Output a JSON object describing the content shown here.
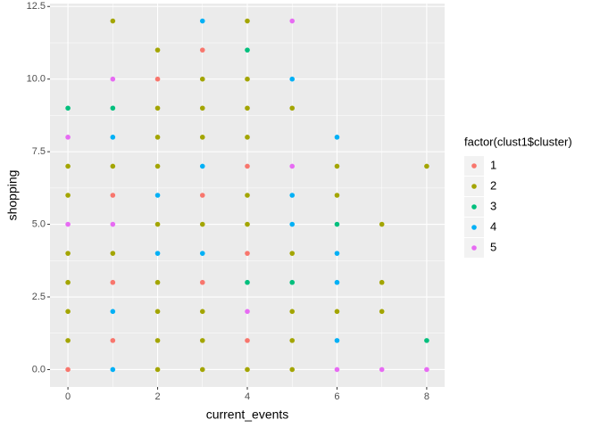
{
  "chart_data": {
    "type": "scatter",
    "x_label": "current_events",
    "y_label": "shopping",
    "legend_title": "factor(clust1$cluster)",
    "legend_position": "right",
    "grid": true,
    "xlim": [
      -0.4,
      8.4
    ],
    "ylim": [
      -0.6,
      12.6
    ],
    "xticks": [
      0,
      2,
      4,
      6,
      8
    ],
    "yticks": [
      {
        "value": 0,
        "label": "0.0"
      },
      {
        "value": 2.5,
        "label": "2.5"
      },
      {
        "value": 5,
        "label": "5.0"
      },
      {
        "value": 7.5,
        "label": "7.5"
      },
      {
        "value": 10,
        "label": "10.0"
      },
      {
        "value": 12.5,
        "label": "12.5"
      }
    ],
    "series": [
      {
        "name": "1",
        "color": "#F8766D",
        "x": [
          0,
          1,
          1,
          1,
          2,
          3,
          3,
          3,
          4,
          4,
          4
        ],
        "values": [
          0,
          1,
          3,
          6,
          10,
          3,
          6,
          11,
          1,
          4,
          7
        ]
      },
      {
        "name": "2",
        "color": "#A3A500",
        "x": [
          0,
          0,
          0,
          0,
          0,
          0,
          1,
          1,
          1,
          2,
          2,
          2,
          2,
          2,
          2,
          2,
          2,
          2,
          3,
          3,
          3,
          3,
          3,
          3,
          3,
          4,
          4,
          4,
          4,
          4,
          4,
          4,
          5,
          5,
          5,
          5,
          5,
          6,
          6,
          6,
          7,
          7,
          7,
          8
        ],
        "values": [
          1,
          2,
          3,
          4,
          6,
          7,
          4,
          7,
          12,
          0,
          1,
          2,
          3,
          5,
          7,
          8,
          9,
          11,
          0,
          1,
          2,
          5,
          8,
          9,
          10,
          0,
          5,
          6,
          8,
          9,
          10,
          12,
          0,
          1,
          2,
          4,
          9,
          2,
          6,
          7,
          2,
          3,
          5,
          7
        ]
      },
      {
        "name": "3",
        "color": "#00BF7D",
        "x": [
          0,
          1,
          4,
          4,
          5,
          6,
          8
        ],
        "values": [
          9,
          9,
          3,
          11,
          3,
          5,
          1
        ]
      },
      {
        "name": "4",
        "color": "#00B0F6",
        "x": [
          1,
          1,
          1,
          2,
          2,
          3,
          3,
          3,
          5,
          5,
          5,
          6,
          6,
          6,
          6
        ],
        "values": [
          0,
          2,
          8,
          4,
          6,
          4,
          7,
          12,
          5,
          6,
          10,
          1,
          3,
          4,
          8
        ]
      },
      {
        "name": "5",
        "color": "#E76BF3",
        "x": [
          0,
          0,
          1,
          1,
          4,
          5,
          5,
          6,
          7,
          8
        ],
        "values": [
          5,
          8,
          5,
          10,
          2,
          7,
          12,
          0,
          0,
          0
        ]
      }
    ]
  }
}
